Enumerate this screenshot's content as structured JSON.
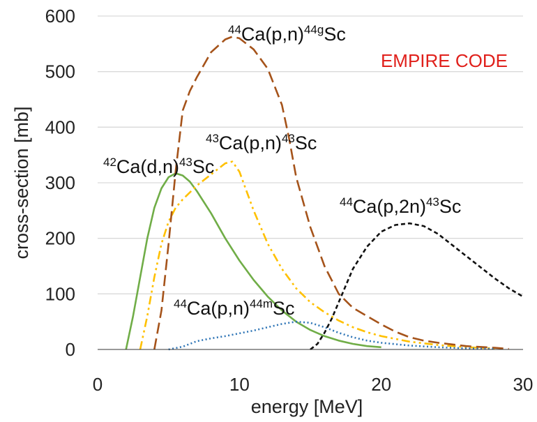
{
  "chart_data": {
    "type": "line",
    "xlabel": "energy [MeV]",
    "ylabel": "cross-section [mb]",
    "xlim": [
      0,
      30
    ],
    "ylim": [
      0,
      600
    ],
    "xticks": [
      "0",
      "10",
      "20",
      "30"
    ],
    "yticks": [
      "0",
      "100",
      "200",
      "300",
      "400",
      "500",
      "600"
    ],
    "annotation": {
      "text": "EMPIRE CODE",
      "color": "#e0201b"
    },
    "series": [
      {
        "id": "ca42dn",
        "label_parts": [
          {
            "t": "42",
            "sup": true
          },
          {
            "t": "Ca(d,n)",
            "sup": false
          },
          {
            "t": "43",
            "sup": true
          },
          {
            "t": "Sc",
            "sup": false
          }
        ],
        "color": "#70ad47",
        "dash": "solid",
        "x": [
          2,
          2.5,
          3,
          3.5,
          4,
          4.5,
          5,
          5.5,
          6,
          6.5,
          7,
          8,
          9,
          10,
          11,
          12,
          13,
          14,
          15,
          16,
          17,
          18,
          19,
          20
        ],
        "y": [
          0,
          60,
          130,
          200,
          255,
          290,
          310,
          317,
          313,
          302,
          285,
          245,
          200,
          160,
          125,
          95,
          70,
          50,
          35,
          24,
          16,
          10,
          6,
          4
        ]
      },
      {
        "id": "ca43pn",
        "label_parts": [
          {
            "t": "43",
            "sup": true
          },
          {
            "t": "Ca(p,n)",
            "sup": false
          },
          {
            "t": "43",
            "sup": true
          },
          {
            "t": "Sc",
            "sup": false
          }
        ],
        "color": "#ffc000",
        "dash": "dashdotdot",
        "x": [
          3,
          3.5,
          4,
          4.5,
          5,
          5.5,
          6,
          7,
          8,
          9,
          9.5,
          10,
          10.5,
          11,
          12,
          13,
          14,
          15,
          16,
          17,
          18,
          19,
          20,
          22,
          24,
          26,
          28
        ],
        "y": [
          0,
          60,
          130,
          190,
          230,
          255,
          270,
          295,
          315,
          335,
          338,
          320,
          285,
          250,
          190,
          145,
          110,
          85,
          67,
          52,
          40,
          31,
          24,
          14,
          8,
          4,
          2
        ]
      },
      {
        "id": "ca44pn_g",
        "label_parts": [
          {
            "t": "44",
            "sup": true
          },
          {
            "t": "Ca(p,n)",
            "sup": false
          },
          {
            "t": "44g",
            "sup": true
          },
          {
            "t": "Sc",
            "sup": false
          }
        ],
        "color": "#a5531a",
        "dash": "longdash",
        "x": [
          4,
          4.5,
          5,
          5.5,
          6,
          6.5,
          7,
          8,
          9,
          9.5,
          10,
          11,
          12,
          13,
          13.5,
          14,
          15,
          16,
          17,
          18,
          19,
          20,
          21,
          22,
          23,
          24,
          26,
          28,
          29
        ],
        "y": [
          0,
          70,
          190,
          320,
          430,
          465,
          490,
          535,
          558,
          563,
          560,
          540,
          505,
          440,
          380,
          310,
          220,
          150,
          100,
          75,
          60,
          45,
          32,
          22,
          16,
          12,
          6,
          3,
          1
        ]
      },
      {
        "id": "ca44pn_m",
        "label_parts": [
          {
            "t": "44",
            "sup": true
          },
          {
            "t": "Ca(p,n)",
            "sup": false
          },
          {
            "t": "44m",
            "sup": true
          },
          {
            "t": "Sc",
            "sup": false
          }
        ],
        "color": "#2e75b6",
        "dash": "dotted",
        "x": [
          5,
          6,
          7,
          8,
          9,
          10,
          11,
          12,
          13,
          14,
          15,
          16,
          17,
          18,
          19,
          20,
          22,
          24,
          26,
          28
        ],
        "y": [
          0,
          5,
          15,
          20,
          24,
          29,
          34,
          40,
          46,
          50,
          48,
          40,
          30,
          22,
          16,
          12,
          7,
          4,
          2,
          1
        ]
      },
      {
        "id": "ca44p2n",
        "label_parts": [
          {
            "t": "44",
            "sup": true
          },
          {
            "t": "Ca(p,2n)",
            "sup": false
          },
          {
            "t": "43",
            "sup": true
          },
          {
            "t": "Sc",
            "sup": false
          }
        ],
        "color": "#111111",
        "dash": "shortdash",
        "x": [
          15,
          15.5,
          16,
          16.5,
          17,
          17.5,
          18,
          19,
          20,
          21,
          22,
          23,
          24,
          25,
          26,
          27,
          28,
          29,
          30
        ],
        "y": [
          0,
          10,
          30,
          55,
          85,
          115,
          145,
          185,
          212,
          224,
          227,
          222,
          208,
          188,
          168,
          148,
          128,
          110,
          95
        ]
      }
    ]
  }
}
